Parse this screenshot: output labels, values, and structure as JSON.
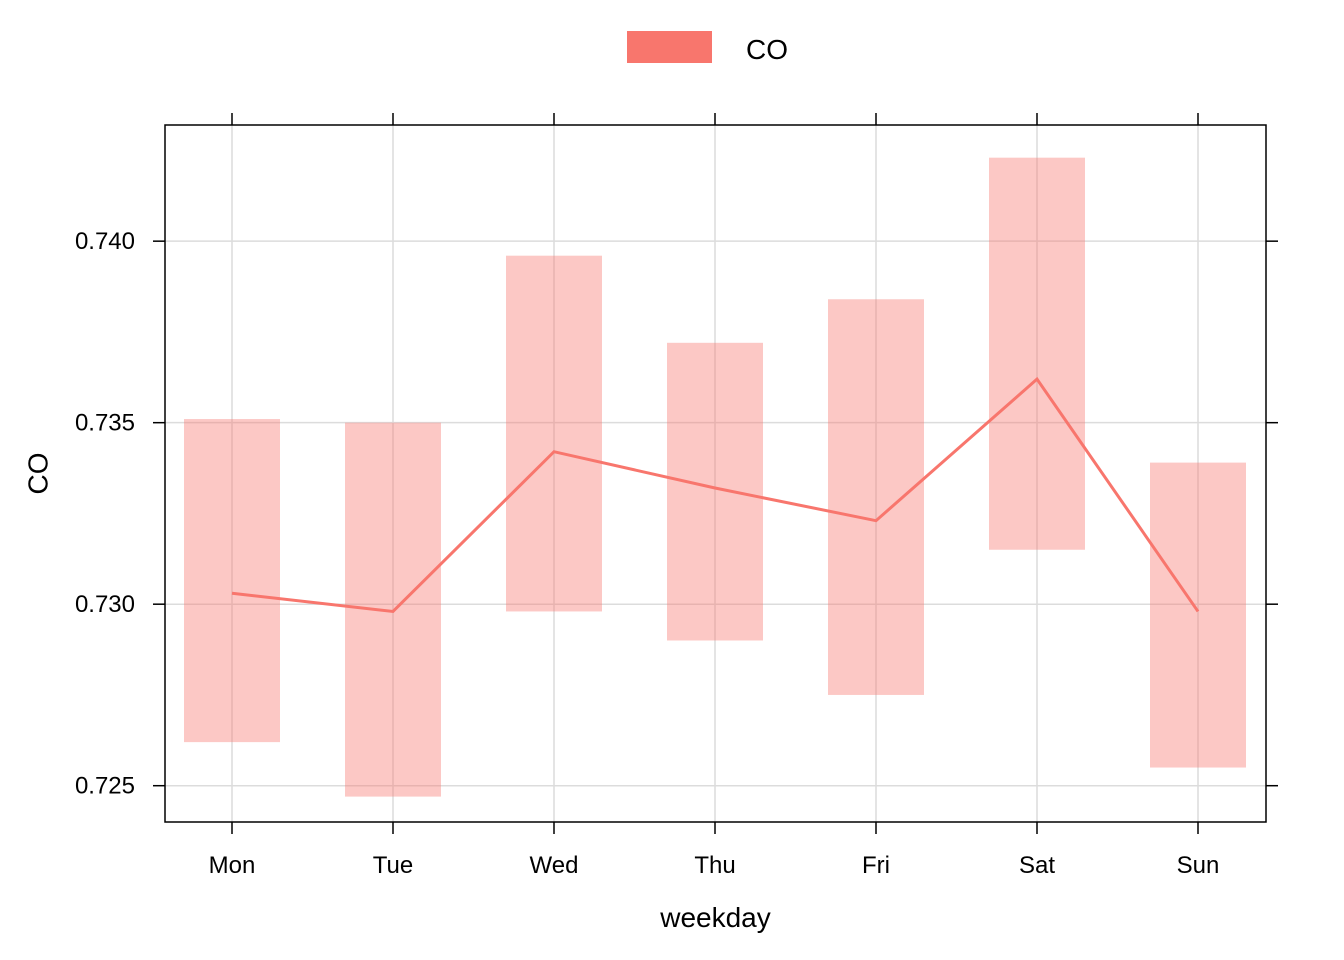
{
  "chart_data": {
    "type": "line",
    "xlabel": "weekday",
    "ylabel": "CO",
    "categories": [
      "Mon",
      "Tue",
      "Wed",
      "Thu",
      "Fri",
      "Sat",
      "Sun"
    ],
    "yticks": [
      "0.725",
      "0.730",
      "0.735",
      "0.740"
    ],
    "ytick_values": [
      0.725,
      0.73,
      0.735,
      0.74
    ],
    "ylim": [
      0.724,
      0.7432
    ],
    "grid": true,
    "legend": {
      "position": "top",
      "entries": [
        "CO"
      ]
    },
    "series": [
      {
        "name": "CO",
        "color": "#F8766D",
        "band_color": "#F8766D",
        "values": [
          0.7303,
          0.7298,
          0.7342,
          0.7332,
          0.7323,
          0.7362,
          0.7298
        ],
        "lower": [
          0.7262,
          0.7247,
          0.7298,
          0.729,
          0.7275,
          0.7315,
          0.7255
        ],
        "upper": [
          0.7351,
          0.735,
          0.7396,
          0.7372,
          0.7384,
          0.7423,
          0.7339
        ]
      }
    ]
  }
}
